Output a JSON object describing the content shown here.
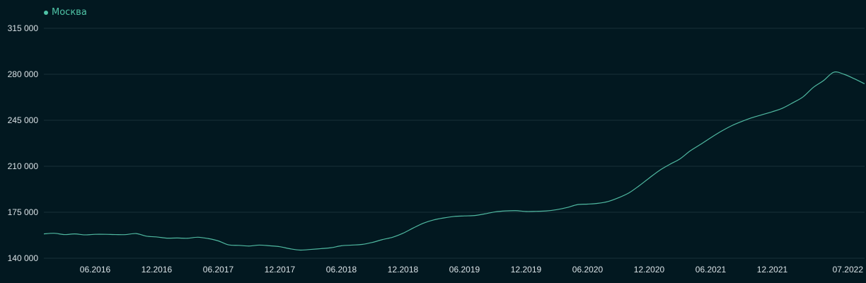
{
  "chart_data": {
    "type": "line",
    "title": "",
    "xlabel": "",
    "ylabel": "",
    "grid": true,
    "legend_placement": "top-left",
    "series_color": "#4fb8a0",
    "ylim": [
      140000,
      315000
    ],
    "y_ticks": [
      {
        "value": 140000,
        "label": "140 000"
      },
      {
        "value": 175000,
        "label": "175 000"
      },
      {
        "value": 210000,
        "label": "210 000"
      },
      {
        "value": 245000,
        "label": "245 000"
      },
      {
        "value": 280000,
        "label": "280 000"
      },
      {
        "value": 315000,
        "label": "315 000"
      }
    ],
    "xlim": [
      "2016-01",
      "2022-09"
    ],
    "x_ticks": [
      {
        "value": "2016-06",
        "label": "06.2016"
      },
      {
        "value": "2016-12",
        "label": "12.2016"
      },
      {
        "value": "2017-06",
        "label": "06.2017"
      },
      {
        "value": "2017-12",
        "label": "12.2017"
      },
      {
        "value": "2018-06",
        "label": "06.2018"
      },
      {
        "value": "2018-12",
        "label": "12.2018"
      },
      {
        "value": "2019-06",
        "label": "06.2019"
      },
      {
        "value": "2019-12",
        "label": "12.2019"
      },
      {
        "value": "2020-06",
        "label": "06.2020"
      },
      {
        "value": "2020-12",
        "label": "12.2020"
      },
      {
        "value": "2021-06",
        "label": "06.2021"
      },
      {
        "value": "2021-12",
        "label": "12.2021"
      },
      {
        "value": "2022-07",
        "label": "07.2022"
      }
    ],
    "series": [
      {
        "name": "Москва",
        "points": [
          [
            "2016-01",
            158500
          ],
          [
            "2016-02",
            159000
          ],
          [
            "2016-03",
            158000
          ],
          [
            "2016-04",
            158500
          ],
          [
            "2016-05",
            157800
          ],
          [
            "2016-06",
            158200
          ],
          [
            "2016-07",
            158200
          ],
          [
            "2016-08",
            158000
          ],
          [
            "2016-09",
            158000
          ],
          [
            "2016-10",
            158800
          ],
          [
            "2016-11",
            156800
          ],
          [
            "2016-12",
            156200
          ],
          [
            "2017-01",
            155300
          ],
          [
            "2017-02",
            155400
          ],
          [
            "2017-03",
            155200
          ],
          [
            "2017-04",
            156000
          ],
          [
            "2017-05",
            155000
          ],
          [
            "2017-06",
            153200
          ],
          [
            "2017-07",
            150200
          ],
          [
            "2017-08",
            149800
          ],
          [
            "2017-09",
            149300
          ],
          [
            "2017-10",
            150000
          ],
          [
            "2017-11",
            149500
          ],
          [
            "2017-12",
            148800
          ],
          [
            "2018-01",
            147200
          ],
          [
            "2018-02",
            146200
          ],
          [
            "2018-03",
            146700
          ],
          [
            "2018-04",
            147300
          ],
          [
            "2018-05",
            148000
          ],
          [
            "2018-06",
            149500
          ],
          [
            "2018-07",
            150000
          ],
          [
            "2018-08",
            150500
          ],
          [
            "2018-09",
            152000
          ],
          [
            "2018-10",
            154200
          ],
          [
            "2018-11",
            156000
          ],
          [
            "2018-12",
            159000
          ],
          [
            "2019-01",
            163000
          ],
          [
            "2019-02",
            166700
          ],
          [
            "2019-03",
            169200
          ],
          [
            "2019-04",
            170700
          ],
          [
            "2019-05",
            171800
          ],
          [
            "2019-06",
            172200
          ],
          [
            "2019-07",
            172500
          ],
          [
            "2019-08",
            173800
          ],
          [
            "2019-09",
            175300
          ],
          [
            "2019-10",
            176000
          ],
          [
            "2019-11",
            176200
          ],
          [
            "2019-12",
            175600
          ],
          [
            "2020-01",
            175700
          ],
          [
            "2020-02",
            176000
          ],
          [
            "2020-03",
            177000
          ],
          [
            "2020-04",
            178600
          ],
          [
            "2020-05",
            180800
          ],
          [
            "2020-06",
            181200
          ],
          [
            "2020-07",
            181800
          ],
          [
            "2020-08",
            183200
          ],
          [
            "2020-09",
            186000
          ],
          [
            "2020-10",
            189600
          ],
          [
            "2020-11",
            195000
          ],
          [
            "2020-12",
            201000
          ],
          [
            "2021-01",
            206800
          ],
          [
            "2021-02",
            211400
          ],
          [
            "2021-03",
            215600
          ],
          [
            "2021-04",
            221700
          ],
          [
            "2021-05",
            226600
          ],
          [
            "2021-06",
            231700
          ],
          [
            "2021-07",
            236500
          ],
          [
            "2021-08",
            240700
          ],
          [
            "2021-09",
            244000
          ],
          [
            "2021-10",
            246900
          ],
          [
            "2021-11",
            249200
          ],
          [
            "2021-12",
            251500
          ],
          [
            "2022-01",
            254200
          ],
          [
            "2022-02",
            258300
          ],
          [
            "2022-03",
            262800
          ],
          [
            "2022-04",
            270000
          ],
          [
            "2022-05",
            275200
          ],
          [
            "2022-06",
            281600
          ],
          [
            "2022-07",
            280000
          ],
          [
            "2022-08",
            276600
          ],
          [
            "2022-09",
            272800
          ]
        ]
      }
    ]
  }
}
